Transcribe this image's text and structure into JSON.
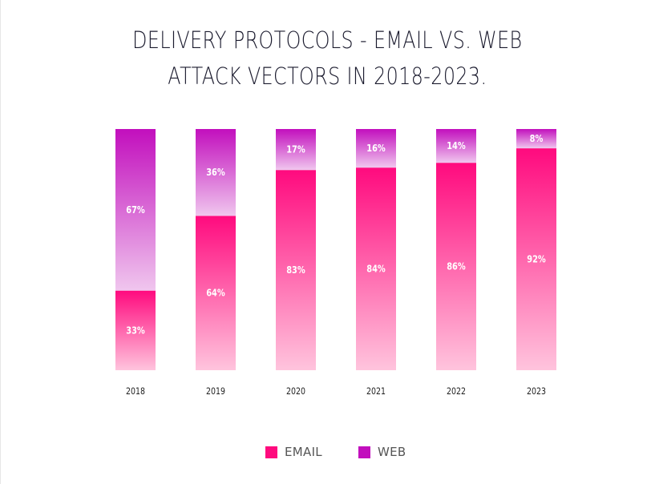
{
  "chart_data": {
    "type": "bar",
    "stacked": true,
    "title_lines": [
      "DELIVERY PROTOCOLS - EMAIL VS. WEB",
      "ATTACK VECTORS IN 2018-2023."
    ],
    "categories": [
      "2018",
      "2019",
      "2020",
      "2021",
      "2022",
      "2023"
    ],
    "series": [
      {
        "name": "EMAIL",
        "values": [
          33,
          64,
          83,
          84,
          86,
          92
        ],
        "labels": [
          "33%",
          "64%",
          "83%",
          "84%",
          "86%",
          "92%"
        ],
        "color": "#ff0a7e",
        "color_light": "#ffc4dd"
      },
      {
        "name": "WEB",
        "values": [
          67,
          36,
          17,
          16,
          14,
          8
        ],
        "labels": [
          "67%",
          "36%",
          "17%",
          "16%",
          "14%",
          "8%"
        ],
        "color": "#c20fbd",
        "color_light": "#f0c6ee"
      }
    ],
    "ylim": [
      0,
      100
    ],
    "grid": false,
    "legend_position": "bottom"
  }
}
